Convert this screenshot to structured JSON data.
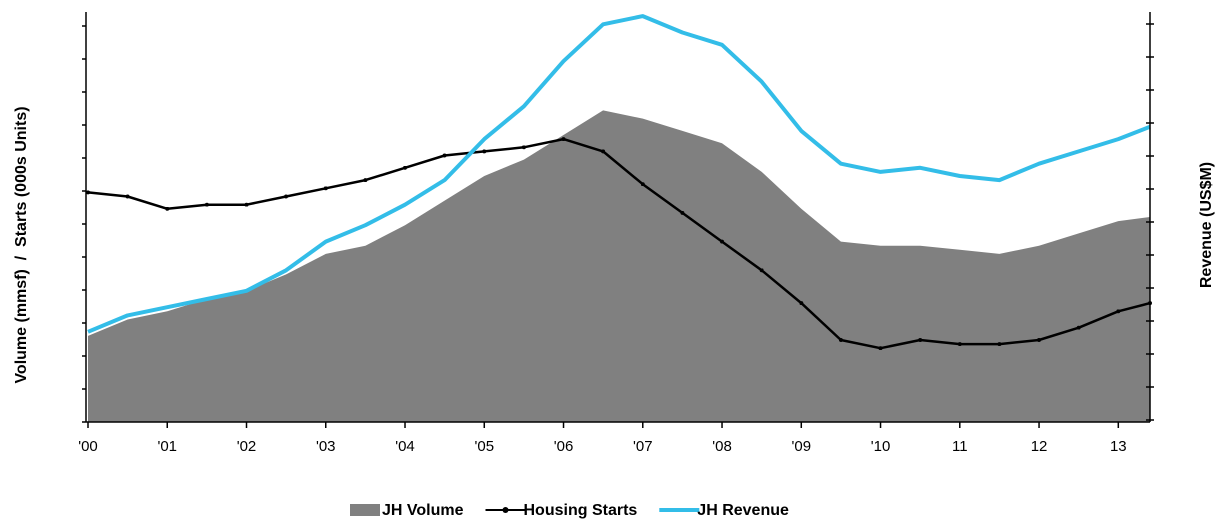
{
  "chart_data": {
    "type": "line",
    "y_label": "Volume (mmsf)  /  Starts (000s Units)",
    "y2_label": "Revenue (US$M)",
    "x": [
      2000,
      2000.5,
      2001,
      2001.5,
      2002,
      2002.5,
      2003,
      2003.5,
      2004,
      2004.5,
      2005,
      2005.5,
      2006,
      2006.5,
      2007,
      2007.5,
      2008,
      2008.5,
      2009,
      2009.5,
      2010,
      2010.5,
      2011,
      2011.5,
      2012,
      2012.5,
      2013,
      2013.4
    ],
    "xlim": [
      2000,
      2013.4
    ],
    "xticks": [
      {
        "value": 2000,
        "label": "'00"
      },
      {
        "value": 2001,
        "label": "'01"
      },
      {
        "value": 2002,
        "label": "'02"
      },
      {
        "value": 2003,
        "label": "'03"
      },
      {
        "value": 2004,
        "label": "'04"
      },
      {
        "value": 2005,
        "label": "'05"
      },
      {
        "value": 2006,
        "label": "'06"
      },
      {
        "value": 2007,
        "label": "'07"
      },
      {
        "value": 2008,
        "label": "'08"
      },
      {
        "value": 2009,
        "label": "'09"
      },
      {
        "value": 2010,
        "label": "'10"
      },
      {
        "value": 2011,
        "label": "11"
      },
      {
        "value": 2012,
        "label": "12"
      },
      {
        "value": 2013,
        "label": "13"
      }
    ],
    "ylim": [
      0,
      100
    ],
    "y2lim": [
      0,
      100
    ],
    "series": [
      {
        "name": "JH Volume",
        "type": "area",
        "color": "#808080",
        "values": [
          21,
          25,
          27,
          30,
          32,
          36,
          41,
          43,
          48,
          54,
          60,
          64,
          70,
          76,
          74,
          71,
          68,
          61,
          52,
          44,
          43,
          43,
          42,
          41,
          43,
          46,
          49,
          50
        ]
      },
      {
        "name": "Housing Starts",
        "type": "line",
        "color": "#000000",
        "values": [
          56,
          55,
          52,
          53,
          53,
          55,
          57,
          59,
          62,
          65,
          66,
          67,
          69,
          66,
          58,
          51,
          44,
          37,
          29,
          20,
          18,
          20,
          19,
          19,
          20,
          23,
          27,
          29
        ]
      },
      {
        "name": "JH Revenue",
        "type": "line",
        "color": "#33bde8",
        "axis": "y2",
        "values": [
          22,
          26,
          28,
          30,
          32,
          37,
          44,
          48,
          53,
          59,
          69,
          77,
          88,
          97,
          99,
          95,
          92,
          83,
          71,
          63,
          61,
          62,
          60,
          59,
          63,
          66,
          69,
          72
        ]
      }
    ]
  }
}
